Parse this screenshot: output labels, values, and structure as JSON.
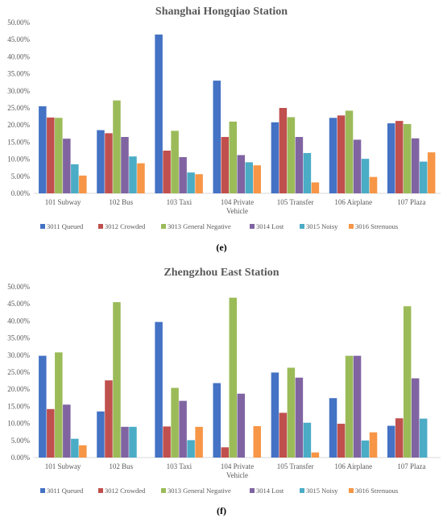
{
  "chart_data": [
    {
      "type": "bar",
      "title": "Shanghai Hongqiao Station",
      "caption": "(e)",
      "ylim": [
        0,
        0.5
      ],
      "yticks": [
        "0.00%",
        "5.00%",
        "10.00%",
        "15.00%",
        "20.00%",
        "25.00%",
        "30.00%",
        "35.00%",
        "40.00%",
        "45.00%",
        "50.00%"
      ],
      "categories": [
        "101 Subway",
        "102 Bus",
        "103 Taxi",
        "104 Private Vehicle",
        "105 Transfer",
        "106 Airplane",
        "107 Plaza"
      ],
      "legend_position": "bottom",
      "grid": false,
      "series": [
        {
          "name": "3011 Queued",
          "color": "#4472C4",
          "values": [
            0.255,
            0.185,
            0.465,
            0.33,
            0.208,
            0.221,
            0.205
          ]
        },
        {
          "name": "3012 Crowded",
          "color": "#C0504D",
          "values": [
            0.222,
            0.176,
            0.125,
            0.165,
            0.25,
            0.228,
            0.212
          ]
        },
        {
          "name": "3013 General Negative",
          "color": "#9BBB59",
          "values": [
            0.221,
            0.272,
            0.183,
            0.21,
            0.223,
            0.242,
            0.203
          ]
        },
        {
          "name": "3014 Lost",
          "color": "#8064A2",
          "values": [
            0.16,
            0.165,
            0.106,
            0.112,
            0.165,
            0.157,
            0.161
          ]
        },
        {
          "name": "3015 Noisy",
          "color": "#4BACC6",
          "values": [
            0.085,
            0.108,
            0.061,
            0.091,
            0.118,
            0.101,
            0.093
          ]
        },
        {
          "name": "3016 Strenuous",
          "color": "#F79646",
          "values": [
            0.052,
            0.088,
            0.056,
            0.082,
            0.032,
            0.048,
            0.12
          ]
        }
      ]
    },
    {
      "type": "bar",
      "title": "Zhengzhou East Station",
      "caption": "(f)",
      "ylim": [
        0,
        0.5
      ],
      "yticks": [
        "0.00%",
        "5.00%",
        "10.00%",
        "15.00%",
        "20.00%",
        "25.00%",
        "30.00%",
        "35.00%",
        "40.00%",
        "45.00%",
        "50.00%"
      ],
      "categories": [
        "101 Subway",
        "102 Bus",
        "103 Taxi",
        "104 Private Vehicle",
        "105 Transfer",
        "106 Airplane",
        "107 Plaza"
      ],
      "legend_position": "bottom",
      "grid": false,
      "series": [
        {
          "name": "3011 Queued",
          "color": "#4472C4",
          "values": [
            0.298,
            0.135,
            0.397,
            0.218,
            0.249,
            0.174,
            0.093
          ]
        },
        {
          "name": "3012 Crowded",
          "color": "#C0504D",
          "values": [
            0.142,
            0.226,
            0.091,
            0.03,
            0.131,
            0.099,
            0.115
          ]
        },
        {
          "name": "3013 General Negative",
          "color": "#9BBB59",
          "values": [
            0.308,
            0.455,
            0.204,
            0.468,
            0.263,
            0.298,
            0.443
          ]
        },
        {
          "name": "3014 Lost",
          "color": "#8064A2",
          "values": [
            0.155,
            0.09,
            0.166,
            0.187,
            0.234,
            0.298,
            0.232
          ]
        },
        {
          "name": "3015 Noisy",
          "color": "#4BACC6",
          "values": [
            0.055,
            0.09,
            0.051,
            0.0,
            0.102,
            0.05,
            0.114
          ]
        },
        {
          "name": "3016 Strenuous",
          "color": "#F79646",
          "values": [
            0.036,
            0.0,
            0.09,
            0.092,
            0.015,
            0.074,
            0.0
          ]
        }
      ]
    }
  ]
}
